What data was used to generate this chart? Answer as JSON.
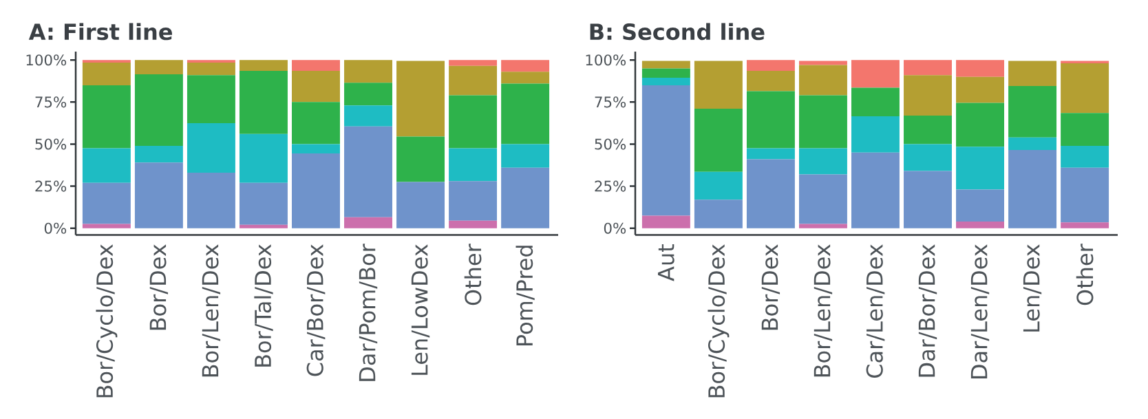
{
  "chart_data": [
    {
      "type": "bar",
      "title": "A: First line",
      "stacked": true,
      "categories": [
        "Bor/Cyclo/Dex",
        "Bor/Dex",
        "Bor/Len/Dex",
        "Bor/Tal/Dex",
        "Car/Bor/Dex",
        "Dar/Pom/Bor",
        "Len/LowDex",
        "Other",
        "Pom/Pred"
      ],
      "series": [
        {
          "color": "#cc6fac",
          "values": [
            2.5,
            0,
            0,
            2,
            0,
            6.5,
            0,
            4.5,
            0
          ]
        },
        {
          "color": "#6f93cb",
          "values": [
            24.5,
            39,
            33,
            25,
            44.5,
            54,
            27.5,
            23.5,
            36
          ]
        },
        {
          "color": "#1ebcc3",
          "values": [
            20.5,
            10,
            29.5,
            29,
            5.5,
            12.5,
            0,
            19.5,
            14
          ]
        },
        {
          "color": "#2eb24b",
          "values": [
            37.5,
            42.5,
            28.5,
            37.5,
            25,
            13.5,
            27,
            31.5,
            36
          ]
        },
        {
          "color": "#b49f32",
          "values": [
            13.5,
            8.5,
            7.5,
            6.5,
            18.5,
            13.5,
            45,
            17.5,
            7
          ]
        },
        {
          "color": "#f3766d",
          "values": [
            1.5,
            0,
            1.5,
            0,
            6.5,
            0,
            0,
            3.5,
            7
          ]
        }
      ],
      "ylim": [
        -4,
        105
      ],
      "yticks": [
        {
          "value": 0,
          "label": "0%"
        },
        {
          "value": 25,
          "label": "25%"
        },
        {
          "value": 50,
          "label": "50%"
        },
        {
          "value": 75,
          "label": "75%"
        },
        {
          "value": 100,
          "label": "100%"
        }
      ]
    },
    {
      "type": "bar",
      "title": "B: Second line",
      "stacked": true,
      "categories": [
        "Aut",
        "Bor/Cyclo/Dex",
        "Bor/Dex",
        "Bor/Len/Dex",
        "Car/Len/Dex",
        "Dar/Bor/Dex",
        "Dar/Len/Dex",
        "Len/Dex",
        "Other"
      ],
      "series": [
        {
          "color": "#cc6fac",
          "values": [
            7.5,
            0,
            0,
            2.5,
            0,
            0,
            4,
            0,
            3.5
          ]
        },
        {
          "color": "#6f93cb",
          "values": [
            77.5,
            17,
            41,
            29.5,
            45,
            34,
            19,
            46.5,
            32.5
          ]
        },
        {
          "color": "#1ebcc3",
          "values": [
            4.5,
            16.5,
            6.5,
            15.5,
            21.5,
            16,
            25.5,
            7.5,
            13
          ]
        },
        {
          "color": "#2eb24b",
          "values": [
            5.5,
            37.5,
            34,
            31.5,
            17,
            17,
            26,
            30.5,
            19.5
          ]
        },
        {
          "color": "#b49f32",
          "values": [
            4.5,
            28.5,
            12,
            18,
            0,
            24,
            15.5,
            15,
            29.5
          ]
        },
        {
          "color": "#f3766d",
          "values": [
            0,
            0,
            6.5,
            2.5,
            16.5,
            9,
            10,
            0,
            1.5
          ]
        }
      ],
      "ylim": [
        -4,
        105
      ],
      "yticks": [
        {
          "value": 0,
          "label": "0%"
        },
        {
          "value": 25,
          "label": "25%"
        },
        {
          "value": 50,
          "label": "50%"
        },
        {
          "value": 75,
          "label": "75%"
        },
        {
          "value": 100,
          "label": "100%"
        }
      ]
    }
  ]
}
